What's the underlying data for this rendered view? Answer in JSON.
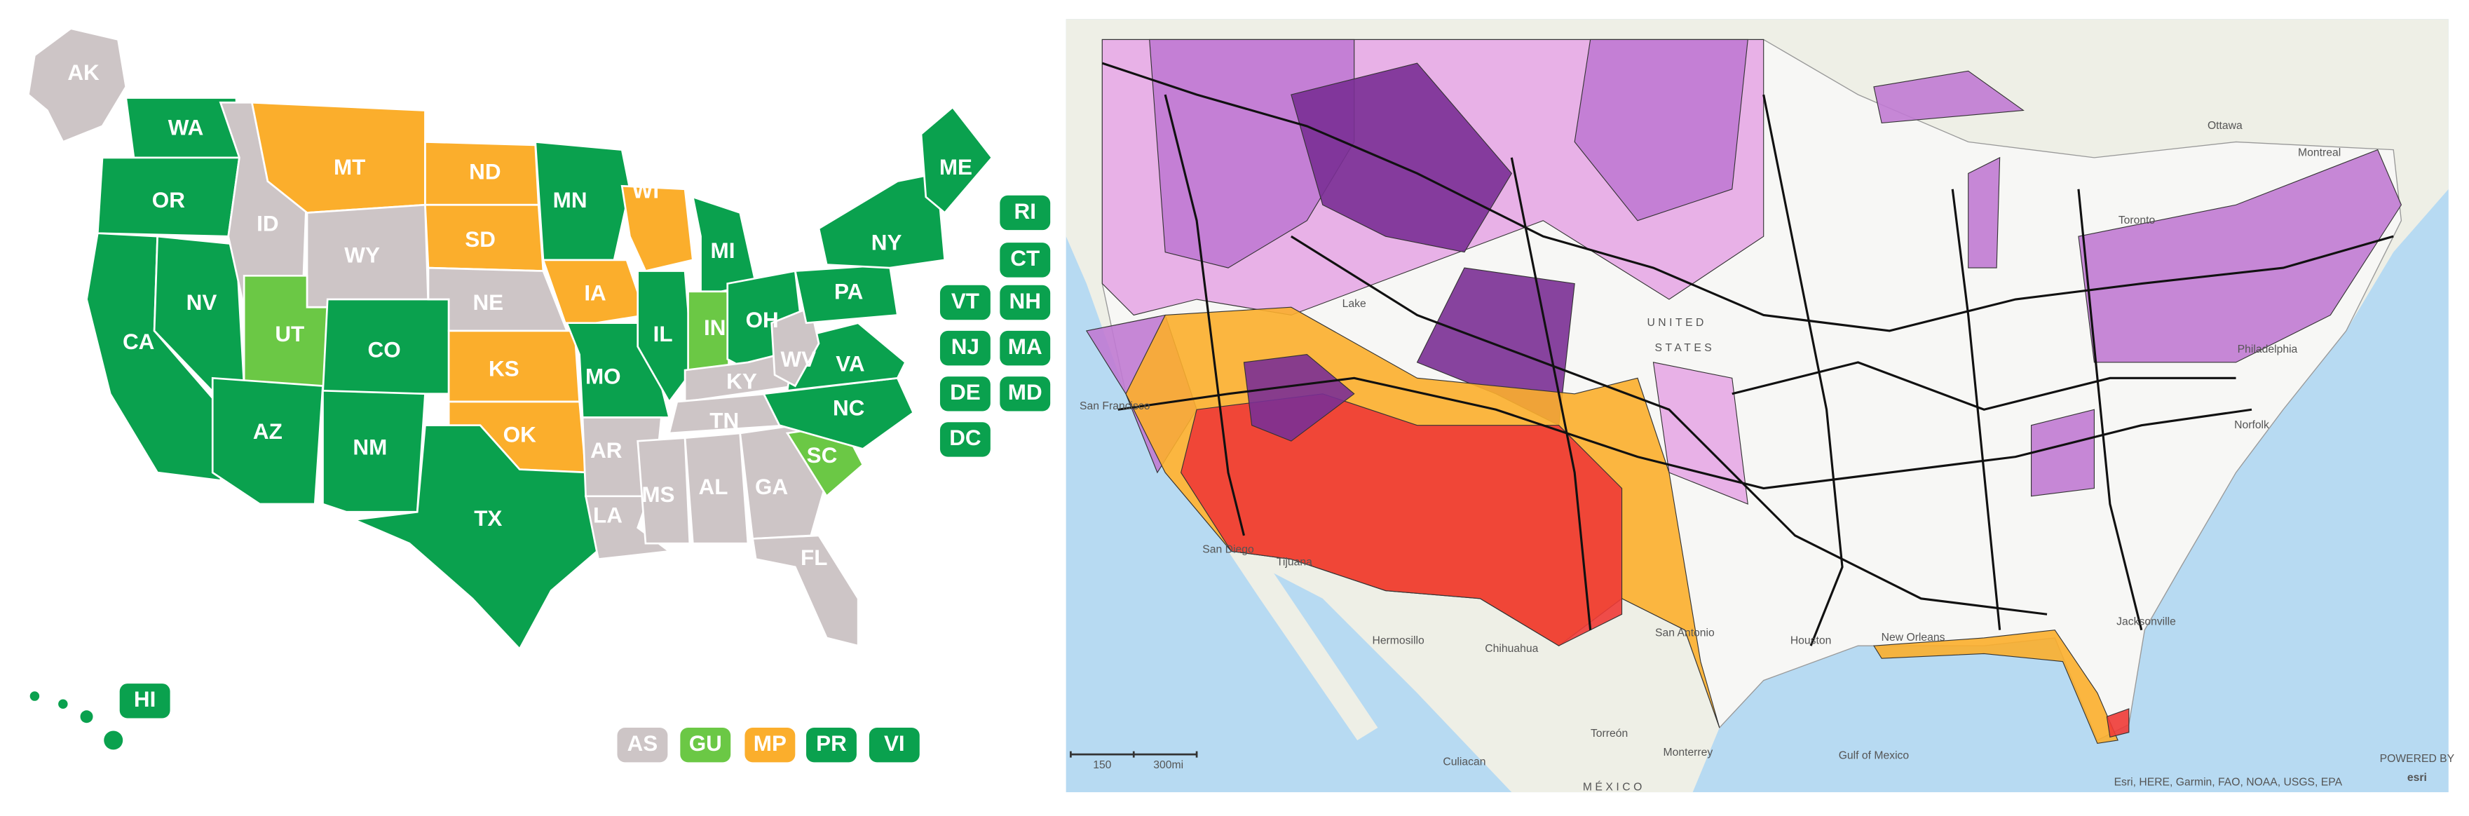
{
  "left_map": {
    "states": [
      {
        "label": "AK",
        "color": "#cdc5c6"
      },
      {
        "label": "WA",
        "color": "#0aa14e"
      },
      {
        "label": "OR",
        "color": "#0aa14e"
      },
      {
        "label": "CA",
        "color": "#0aa14e"
      },
      {
        "label": "NV",
        "color": "#0aa14e"
      },
      {
        "label": "ID",
        "color": "#cdc5c6"
      },
      {
        "label": "MT",
        "color": "#fbae2c"
      },
      {
        "label": "WY",
        "color": "#cdc5c6"
      },
      {
        "label": "UT",
        "color": "#6bc845"
      },
      {
        "label": "CO",
        "color": "#0aa14e"
      },
      {
        "label": "AZ",
        "color": "#0aa14e"
      },
      {
        "label": "NM",
        "color": "#0aa14e"
      },
      {
        "label": "ND",
        "color": "#fbae2c"
      },
      {
        "label": "SD",
        "color": "#fbae2c"
      },
      {
        "label": "NE",
        "color": "#cdc5c6"
      },
      {
        "label": "KS",
        "color": "#fbae2c"
      },
      {
        "label": "OK",
        "color": "#fbae2c"
      },
      {
        "label": "TX",
        "color": "#0aa14e"
      },
      {
        "label": "MN",
        "color": "#0aa14e"
      },
      {
        "label": "IA",
        "color": "#fbae2c"
      },
      {
        "label": "MO",
        "color": "#0aa14e"
      },
      {
        "label": "AR",
        "color": "#cdc5c6"
      },
      {
        "label": "LA",
        "color": "#cdc5c6"
      },
      {
        "label": "WI",
        "color": "#fbae2c"
      },
      {
        "label": "IL",
        "color": "#0aa14e"
      },
      {
        "label": "MI",
        "color": "#0aa14e"
      },
      {
        "label": "IN",
        "color": "#6bc845"
      },
      {
        "label": "OH",
        "color": "#0aa14e"
      },
      {
        "label": "KY",
        "color": "#cdc5c6"
      },
      {
        "label": "TN",
        "color": "#cdc5c6"
      },
      {
        "label": "MS",
        "color": "#cdc5c6"
      },
      {
        "label": "AL",
        "color": "#cdc5c6"
      },
      {
        "label": "GA",
        "color": "#cdc5c6"
      },
      {
        "label": "FL",
        "color": "#cdc5c6"
      },
      {
        "label": "SC",
        "color": "#6bc845"
      },
      {
        "label": "NC",
        "color": "#0aa14e"
      },
      {
        "label": "VA",
        "color": "#0aa14e"
      },
      {
        "label": "WV",
        "color": "#cdc5c6"
      },
      {
        "label": "PA",
        "color": "#0aa14e"
      },
      {
        "label": "NY",
        "color": "#0aa14e"
      },
      {
        "label": "ME",
        "color": "#0aa14e"
      }
    ],
    "badges": [
      {
        "label": "RI",
        "color": "#0aa14e"
      },
      {
        "label": "CT",
        "color": "#0aa14e"
      },
      {
        "label": "VT",
        "color": "#0aa14e"
      },
      {
        "label": "NH",
        "color": "#0aa14e"
      },
      {
        "label": "NJ",
        "color": "#0aa14e"
      },
      {
        "label": "MA",
        "color": "#0aa14e"
      },
      {
        "label": "DE",
        "color": "#0aa14e"
      },
      {
        "label": "MD",
        "color": "#0aa14e"
      },
      {
        "label": "DC",
        "color": "#0aa14e"
      },
      {
        "label": "HI",
        "color": "#0aa14e"
      },
      {
        "label": "AS",
        "color": "#cdc5c6"
      },
      {
        "label": "GU",
        "color": "#6bc845"
      },
      {
        "label": "MP",
        "color": "#fbae2c"
      },
      {
        "label": "PR",
        "color": "#0aa14e"
      },
      {
        "label": "VI",
        "color": "#0aa14e"
      }
    ]
  },
  "right_map": {
    "labels": [
      "UNITED",
      "STATES",
      "MÉXICO",
      "San Francisco",
      "San Diego",
      "Tijuana",
      "Hermosillo",
      "Chihuahua",
      "Torreón",
      "Monterrey",
      "Culiacan",
      "Gulf of Mexico",
      "Houston",
      "San Antonio",
      "New Orleans",
      "Jacksonville",
      "Norfolk",
      "Montreal",
      "Ottawa",
      "Toronto",
      "Philadelphia",
      "Lake"
    ],
    "scale": [
      "150",
      "300mi"
    ],
    "attribution": "Esri, HERE, Garmin, FAO, NOAA, USGS, EPA",
    "logo_caption": "POWERED BY",
    "logo": "esri"
  }
}
